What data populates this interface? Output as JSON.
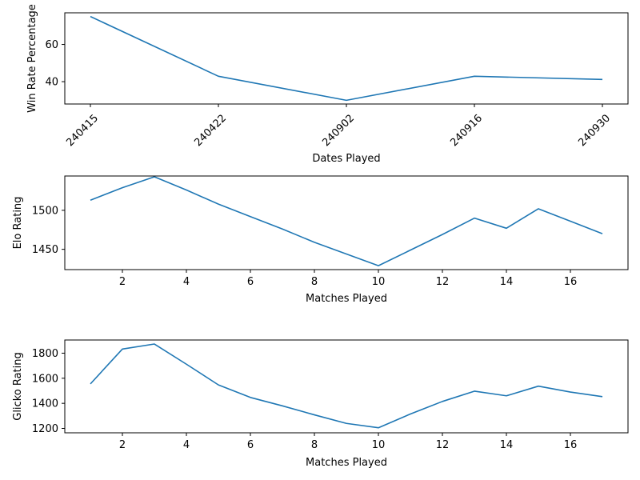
{
  "chart_data": [
    {
      "type": "line",
      "xlabel": "Dates Played",
      "ylabel": "Win Rate Percentage",
      "categories": [
        "240415",
        "240422",
        "240902",
        "240916",
        "240930"
      ],
      "x_tick_rotation_deg": 45,
      "ylim": [
        28,
        77
      ],
      "yticks": [
        40,
        60
      ],
      "grid": false,
      "color": "#1f77b4",
      "series": [
        {
          "values": [
            75,
            42.9,
            30,
            42.9,
            41.2
          ]
        }
      ]
    },
    {
      "type": "line",
      "xlabel": "Matches Played",
      "ylabel": "Elo Rating",
      "xlim": [
        0.2,
        17.8
      ],
      "ylim": [
        1424,
        1544
      ],
      "xticks": [
        2,
        4,
        6,
        8,
        10,
        12,
        14,
        16
      ],
      "yticks": [
        1450,
        1500
      ],
      "grid": false,
      "color": "#1f77b4",
      "series": [
        {
          "x": [
            1,
            2,
            3,
            4,
            5,
            6,
            7,
            8,
            9,
            10,
            11,
            12,
            13,
            14,
            15,
            16,
            17
          ],
          "values": [
            1513,
            1529,
            1543,
            1526,
            1508,
            1492,
            1476,
            1459,
            1444,
            1429,
            1449,
            1469,
            1490,
            1477,
            1502,
            1486,
            1470
          ]
        }
      ]
    },
    {
      "type": "line",
      "xlabel": "Matches Played",
      "ylabel": "Glicko Rating",
      "xlim": [
        0.2,
        17.8
      ],
      "ylim": [
        1165,
        1905
      ],
      "xticks": [
        2,
        4,
        6,
        8,
        10,
        12,
        14,
        16
      ],
      "yticks": [
        1200,
        1400,
        1600,
        1800
      ],
      "grid": false,
      "color": "#1f77b4",
      "series": [
        {
          "x": [
            1,
            2,
            3,
            4,
            5,
            6,
            7,
            8,
            9,
            10,
            11,
            12,
            13,
            14,
            15,
            16,
            17
          ],
          "values": [
            1555,
            1833,
            1873,
            1712,
            1547,
            1447,
            1380,
            1308,
            1240,
            1205,
            1315,
            1415,
            1497,
            1460,
            1537,
            1490,
            1453
          ]
        }
      ]
    }
  ]
}
